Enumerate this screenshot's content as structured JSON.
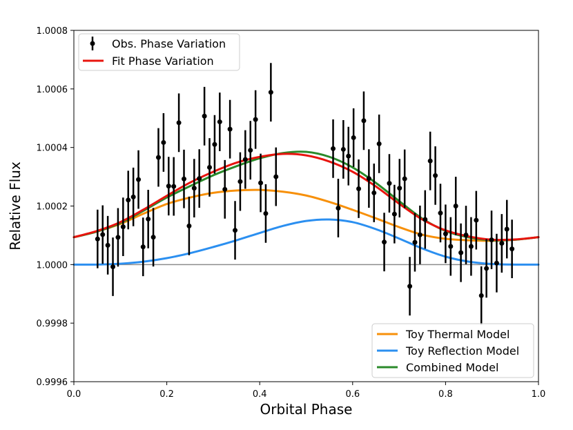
{
  "chart_data": {
    "type": "line",
    "xlabel": "Orbital Phase",
    "ylabel": "Relative Flux",
    "xlim": [
      0.0,
      1.0
    ],
    "ylim": [
      0.9996,
      1.0008
    ],
    "xticks": [
      0.0,
      0.2,
      0.4,
      0.6,
      0.8,
      1.0
    ],
    "xtick_labels": [
      "0.0",
      "0.2",
      "0.4",
      "0.6",
      "0.8",
      "1.0"
    ],
    "yticks": [
      0.9996,
      0.9998,
      1.0,
      1.0002,
      1.0004,
      1.0006,
      1.0008
    ],
    "ytick_labels": [
      "0.9996",
      "0.9998",
      "1.0000",
      "1.0002",
      "1.0004",
      "1.0006",
      "1.0008"
    ],
    "baseline": 1.0,
    "legend_top": {
      "placement": "top-left",
      "entries": [
        {
          "label": "Obs. Phase Variation",
          "color": "#000000",
          "kind": "errorbar"
        },
        {
          "label": "Fit Phase Variation",
          "color": "#e8140e",
          "kind": "line"
        }
      ]
    },
    "legend_bottom": {
      "placement": "bottom-right",
      "entries": [
        {
          "label": "Toy Thermal Model",
          "color": "#f7900a",
          "kind": "line"
        },
        {
          "label": "Toy Reflection Model",
          "color": "#2b8ff0",
          "kind": "line"
        },
        {
          "label": "Combined Model",
          "color": "#2a8a2a",
          "kind": "line"
        }
      ]
    },
    "observations": {
      "name": "Obs. Phase Variation",
      "color": "#000000",
      "x": [
        0.051,
        0.062,
        0.073,
        0.084,
        0.095,
        0.106,
        0.117,
        0.128,
        0.139,
        0.149,
        0.16,
        0.171,
        0.182,
        0.193,
        0.204,
        0.215,
        0.226,
        0.237,
        0.248,
        0.259,
        0.27,
        0.281,
        0.292,
        0.303,
        0.314,
        0.325,
        0.336,
        0.347,
        0.358,
        0.369,
        0.38,
        0.391,
        0.402,
        0.413,
        0.424,
        0.435,
        0.558,
        0.569,
        0.58,
        0.591,
        0.602,
        0.613,
        0.624,
        0.635,
        0.646,
        0.657,
        0.668,
        0.679,
        0.69,
        0.701,
        0.712,
        0.723,
        0.734,
        0.745,
        0.756,
        0.767,
        0.778,
        0.789,
        0.8,
        0.811,
        0.822,
        0.833,
        0.844,
        0.855,
        0.866,
        0.877,
        0.888,
        0.899,
        0.91,
        0.921,
        0.932,
        0.943
      ],
      "y": [
        1.0000875,
        1.0001025,
        1.000066,
        0.9999925,
        1.000093,
        1.000129,
        1.0002205,
        1.000231,
        1.0002905,
        1.0000605,
        1.0001555,
        1.0000935,
        1.000366,
        1.000417,
        1.000268,
        1.000267,
        1.0004845,
        1.0002925,
        1.000132,
        1.000261,
        1.000294,
        1.000507,
        1.000332,
        1.0004105,
        1.0004875,
        1.000257,
        1.0004625,
        1.000117,
        1.0002835,
        1.000359,
        1.0003905,
        1.0004955,
        1.000279,
        1.0001745,
        1.0005885,
        1.0003,
        1.000396,
        1.000193,
        1.0003935,
        1.0003705,
        1.0004335,
        1.000259,
        1.0004915,
        1.000294,
        1.000245,
        1.0004125,
        1.000077,
        1.0002775,
        1.0001725,
        1.000261,
        1.000293,
        0.999926,
        1.000076,
        1.0001015,
        1.000154,
        1.000354,
        1.000304,
        1.000176,
        1.000105,
        1.000062,
        1.0002,
        1.0000405,
        1.000101,
        1.000062,
        1.0001515,
        0.999894,
        0.999987,
        1.0000845,
        1.000005,
        1.0000725,
        1.000121,
        1.0000535
      ],
      "yerr": [
        0.0001,
        0.0001,
        0.0001,
        0.0001,
        0.0001,
        0.0001,
        0.0001,
        0.0001,
        0.0001,
        0.0001,
        0.0001,
        0.0001,
        0.0001,
        0.0001,
        0.0001,
        0.0001,
        0.0001,
        0.0001,
        0.0001,
        0.0001,
        0.0001,
        0.0001,
        0.0001,
        0.0001,
        0.0001,
        0.0001,
        0.0001,
        0.0001,
        0.0001,
        0.0001,
        0.0001,
        0.0001,
        0.0001,
        0.0001,
        0.0001,
        0.0001,
        0.0001,
        0.0001,
        0.0001,
        0.0001,
        0.0001,
        0.0001,
        0.0001,
        0.0001,
        0.0001,
        0.0001,
        0.0001,
        0.0001,
        0.0001,
        0.0001,
        0.0001,
        0.0001,
        0.0001,
        0.0001,
        0.0001,
        0.0001,
        0.0001,
        0.0001,
        0.0001,
        0.0001,
        0.0001,
        0.0001,
        0.0001,
        0.0001,
        0.0001,
        0.0001,
        0.0001,
        0.0001,
        0.0001,
        0.0001,
        0.0001,
        0.0001
      ]
    },
    "series": [
      {
        "name": "Toy Thermal Model",
        "color": "#f7900a",
        "x": [
          0.0,
          0.05,
          0.1,
          0.15,
          0.2,
          0.25,
          0.3,
          0.35,
          0.4,
          0.45,
          0.5,
          0.55,
          0.6,
          0.65,
          0.7,
          0.75,
          0.8,
          0.85,
          0.9,
          0.95,
          1.0
        ],
        "y": [
          1.0000935,
          1.000113,
          1.000139,
          1.000174,
          1.000207,
          1.000229,
          1.000245,
          1.000253,
          1.000255,
          1.000249,
          1.000236,
          1.000214,
          1.000187,
          1.000158,
          1.000128,
          1.000102,
          1.000088,
          1.000083,
          1.000081,
          1.000085,
          1.0000935
        ]
      },
      {
        "name": "Toy Reflection Model",
        "color": "#2b8ff0",
        "x": [
          0.0,
          0.05,
          0.1,
          0.15,
          0.2,
          0.25,
          0.3,
          0.35,
          0.4,
          0.45,
          0.5,
          0.55,
          0.6,
          0.65,
          0.7,
          0.75,
          0.8,
          0.85,
          0.9,
          0.95,
          1.0
        ],
        "y": [
          1.0,
          1.0,
          1.000003,
          1.00001,
          1.000022,
          1.000039,
          1.00006,
          1.000083,
          1.000108,
          1.000132,
          1.000149,
          1.000154,
          1.000145,
          1.000121,
          1.000089,
          1.000055,
          1.000027,
          1.00001,
          1.000002,
          1.0,
          1.0
        ]
      },
      {
        "name": "Combined Model",
        "color": "#2a8a2a",
        "x": [
          0.0,
          0.05,
          0.1,
          0.15,
          0.2,
          0.25,
          0.3,
          0.35,
          0.4,
          0.45,
          0.5,
          0.55,
          0.6,
          0.65,
          0.7,
          0.75,
          0.8,
          0.85,
          0.9,
          0.95,
          1.0
        ],
        "y": [
          1.0000935,
          1.000113,
          1.000142,
          1.000184,
          1.000229,
          1.000268,
          1.000305,
          1.000336,
          1.000363,
          1.000381,
          1.000385,
          1.000368,
          1.000332,
          1.000279,
          1.000217,
          1.000157,
          1.000115,
          1.000093,
          1.000083,
          1.000085,
          1.0000935
        ]
      },
      {
        "name": "Fit Phase Variation",
        "color": "#e8140e",
        "x": [
          0.0,
          0.05,
          0.1,
          0.15,
          0.2,
          0.25,
          0.3,
          0.35,
          0.4,
          0.45,
          0.5,
          0.55,
          0.6,
          0.65,
          0.7,
          0.75,
          0.8,
          0.85,
          0.9,
          0.95,
          1.0
        ],
        "y": [
          1.0000935,
          1.000115,
          1.000145,
          1.000188,
          1.000235,
          1.00028,
          1.000317,
          1.000348,
          1.000368,
          1.000378,
          1.000373,
          1.000352,
          1.000317,
          1.000267,
          1.000208,
          1.000154,
          1.000117,
          1.000096,
          1.000085,
          1.000086,
          1.0000935
        ]
      }
    ]
  }
}
